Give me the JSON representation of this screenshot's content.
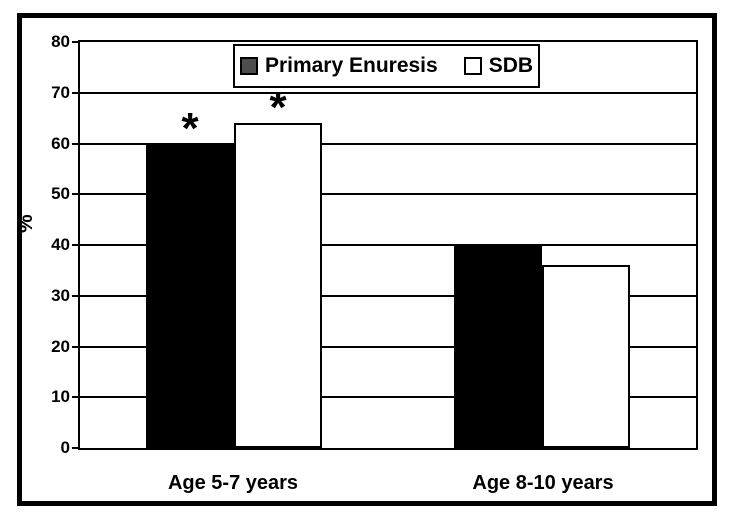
{
  "chart_data": {
    "type": "bar",
    "title": "",
    "categories": [
      "Age 5-7 years",
      "Age 8-10 years"
    ],
    "series": [
      {
        "name": "Primary Enuresis",
        "values": [
          60,
          40
        ],
        "bar_fill": "#000000",
        "legend_fill": "#4d4d4d"
      },
      {
        "name": "SDB",
        "values": [
          64,
          36
        ],
        "bar_fill": "#ffffff",
        "legend_fill": "#ffffff"
      }
    ],
    "annotations": [
      {
        "text": "*",
        "category_index": 0,
        "series_index": 0
      },
      {
        "text": "*",
        "category_index": 0,
        "series_index": 1
      }
    ],
    "xlabel": "",
    "ylabel": "%",
    "ylim": [
      0,
      80
    ],
    "yticks": [
      0,
      10,
      20,
      30,
      40,
      50,
      60,
      70,
      80
    ],
    "grid": "horizontal",
    "legend_position": "top-center",
    "colors": {
      "axis": "#000000",
      "gridline": "#000000",
      "background": "#ffffff",
      "frame_border": "#000000"
    }
  }
}
